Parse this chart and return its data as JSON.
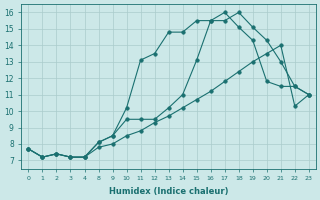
{
  "xlabel": "Humidex (Indice chaleur)",
  "bg_color": "#cce8e8",
  "line_color": "#1a7070",
  "grid_color": "#aacccc",
  "ylim": [
    6.5,
    16.5
  ],
  "yticks": [
    7,
    8,
    9,
    10,
    11,
    12,
    13,
    14,
    15,
    16
  ],
  "xtick_labels": [
    "0",
    "1",
    "2",
    "3",
    "4",
    "8",
    "9",
    "10",
    "11",
    "12",
    "13",
    "14",
    "15",
    "16",
    "17",
    "18",
    "19",
    "20",
    "21",
    "22",
    "23"
  ],
  "line1_y": [
    7.7,
    7.2,
    7.4,
    7.2,
    7.2,
    8.1,
    8.5,
    10.2,
    13.1,
    13.5,
    14.8,
    14.8,
    15.5,
    15.5,
    16.0,
    15.1,
    14.3,
    11.8,
    11.5,
    11.5,
    11.0
  ],
  "line2_y": [
    7.7,
    7.2,
    7.4,
    7.2,
    7.2,
    8.1,
    8.5,
    9.5,
    9.5,
    9.5,
    10.2,
    11.0,
    13.1,
    15.5,
    15.5,
    16.0,
    15.1,
    14.3,
    13.0,
    11.5,
    11.0
  ],
  "line3_y": [
    7.7,
    7.2,
    7.4,
    7.2,
    7.2,
    7.8,
    8.0,
    8.5,
    8.8,
    9.3,
    9.7,
    10.2,
    10.7,
    11.2,
    11.8,
    12.4,
    13.0,
    13.5,
    14.0,
    10.3,
    11.0
  ]
}
